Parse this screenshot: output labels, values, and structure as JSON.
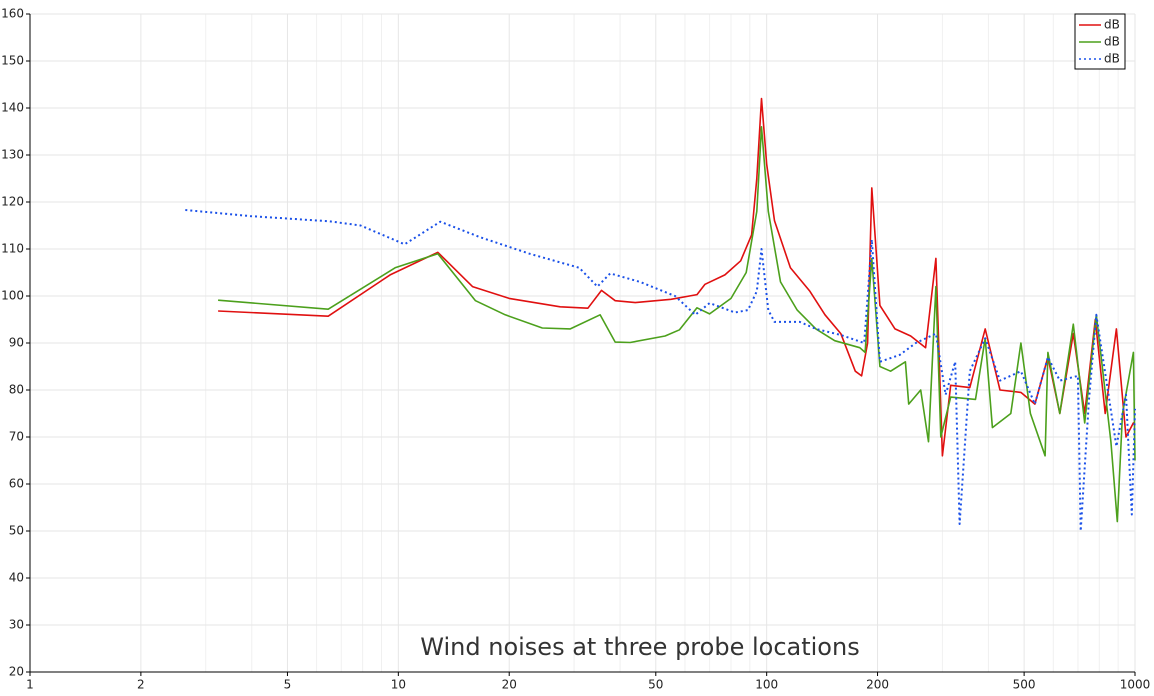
{
  "chart_data": {
    "type": "line",
    "title": "Wind noises at three probe locations",
    "xscale": "log",
    "xlim": [
      1,
      1000
    ],
    "ylim": [
      20,
      160
    ],
    "xticks": [
      1,
      2,
      5,
      10,
      20,
      50,
      100,
      200,
      500,
      1000
    ],
    "xminorticks": [
      3,
      4,
      6,
      7,
      8,
      9,
      30,
      40,
      60,
      70,
      80,
      90,
      300,
      400,
      600,
      700,
      800,
      900
    ],
    "yticks": [
      20,
      30,
      40,
      50,
      60,
      70,
      80,
      90,
      100,
      110,
      120,
      130,
      140,
      150,
      160
    ],
    "grid": true,
    "legend": "top-right",
    "series": [
      {
        "name": "dB",
        "color": "#e01010",
        "dashed": false,
        "x": [
          3.24,
          6.45,
          9.5,
          12.8,
          15.9,
          20,
          27.5,
          32.7,
          35.6,
          38.8,
          44,
          55,
          64.7,
          68,
          77,
          85,
          91,
          94,
          96.8,
          100,
          105,
          116,
          131,
          144,
          159,
          174,
          181,
          188,
          193,
          203,
          223,
          246,
          270,
          288,
          300,
          316,
          356,
          392,
          430,
          490,
          535,
          580,
          625,
          680,
          730,
          780,
          830,
          890,
          945,
          990,
          1000
        ],
        "values": [
          96.8,
          95.7,
          104.5,
          109.3,
          102,
          99.5,
          97.7,
          97.4,
          101.2,
          99,
          98.6,
          99.3,
          100.3,
          102.5,
          104.5,
          107.5,
          113,
          125,
          142,
          128,
          116,
          106,
          101,
          96,
          92,
          84,
          83,
          90,
          123,
          98,
          93,
          91.5,
          89,
          108,
          66,
          81,
          80.5,
          93,
          80,
          79.5,
          77,
          87,
          75,
          92,
          75,
          95,
          75,
          93,
          70,
          73,
          72.5
        ]
      },
      {
        "name": "dB",
        "color": "#4ca01c",
        "dashed": false,
        "x": [
          3.24,
          6.45,
          9.8,
          12.8,
          16.2,
          19.5,
          24.6,
          29.3,
          35.3,
          38.8,
          42.6,
          53,
          58,
          64.7,
          70,
          80,
          88,
          94,
          96.8,
          101,
          109,
          121,
          136,
          153,
          179,
          185,
          193,
          203,
          217,
          238,
          243,
          262,
          275,
          288,
          297,
          316,
          369,
          392,
          410,
          460,
          490,
          520,
          570,
          580,
          625,
          680,
          730,
          785,
          860,
          895,
          925,
          990,
          1000
        ],
        "values": [
          99.1,
          97.2,
          106,
          109,
          99,
          96,
          93.2,
          93,
          96,
          90.2,
          90.1,
          91.5,
          92.8,
          97.5,
          96.2,
          99.5,
          105,
          118,
          136,
          118,
          103,
          97,
          93,
          90.5,
          89,
          88,
          108,
          85,
          84,
          86,
          77,
          80,
          69,
          102,
          70,
          78.5,
          78,
          91,
          72,
          75,
          90,
          75,
          66,
          88,
          75,
          94,
          73,
          96,
          69,
          52,
          75,
          88,
          65
        ]
      },
      {
        "name": "dB",
        "color": "#1a50e8",
        "dashed": true,
        "x": [
          2.64,
          3.96,
          6.5,
          7.9,
          10.4,
          13,
          16.7,
          22.7,
          31,
          34.7,
          37.6,
          45.3,
          56.4,
          64,
          70,
          82,
          89,
          94,
          96.8,
          101,
          105,
          123,
          136,
          159,
          184,
          193,
          203,
          230,
          254,
          288,
          306,
          325,
          334,
          356,
          392,
          430,
          490,
          535,
          580,
          625,
          700,
          712,
          750,
          785,
          890,
          945,
          980,
          1000
        ],
        "values": [
          118.3,
          117,
          115.9,
          115,
          111,
          115.8,
          112.5,
          109,
          106,
          102,
          104.8,
          103,
          100,
          96,
          98.5,
          96.5,
          97,
          101,
          110,
          97,
          94.5,
          94.5,
          93,
          91.7,
          90,
          112,
          86,
          87.5,
          90,
          92,
          79,
          86,
          51.5,
          84,
          91,
          82,
          84,
          77,
          87,
          82,
          83,
          50,
          78,
          96,
          68,
          79,
          53.5,
          76
        ]
      }
    ]
  }
}
